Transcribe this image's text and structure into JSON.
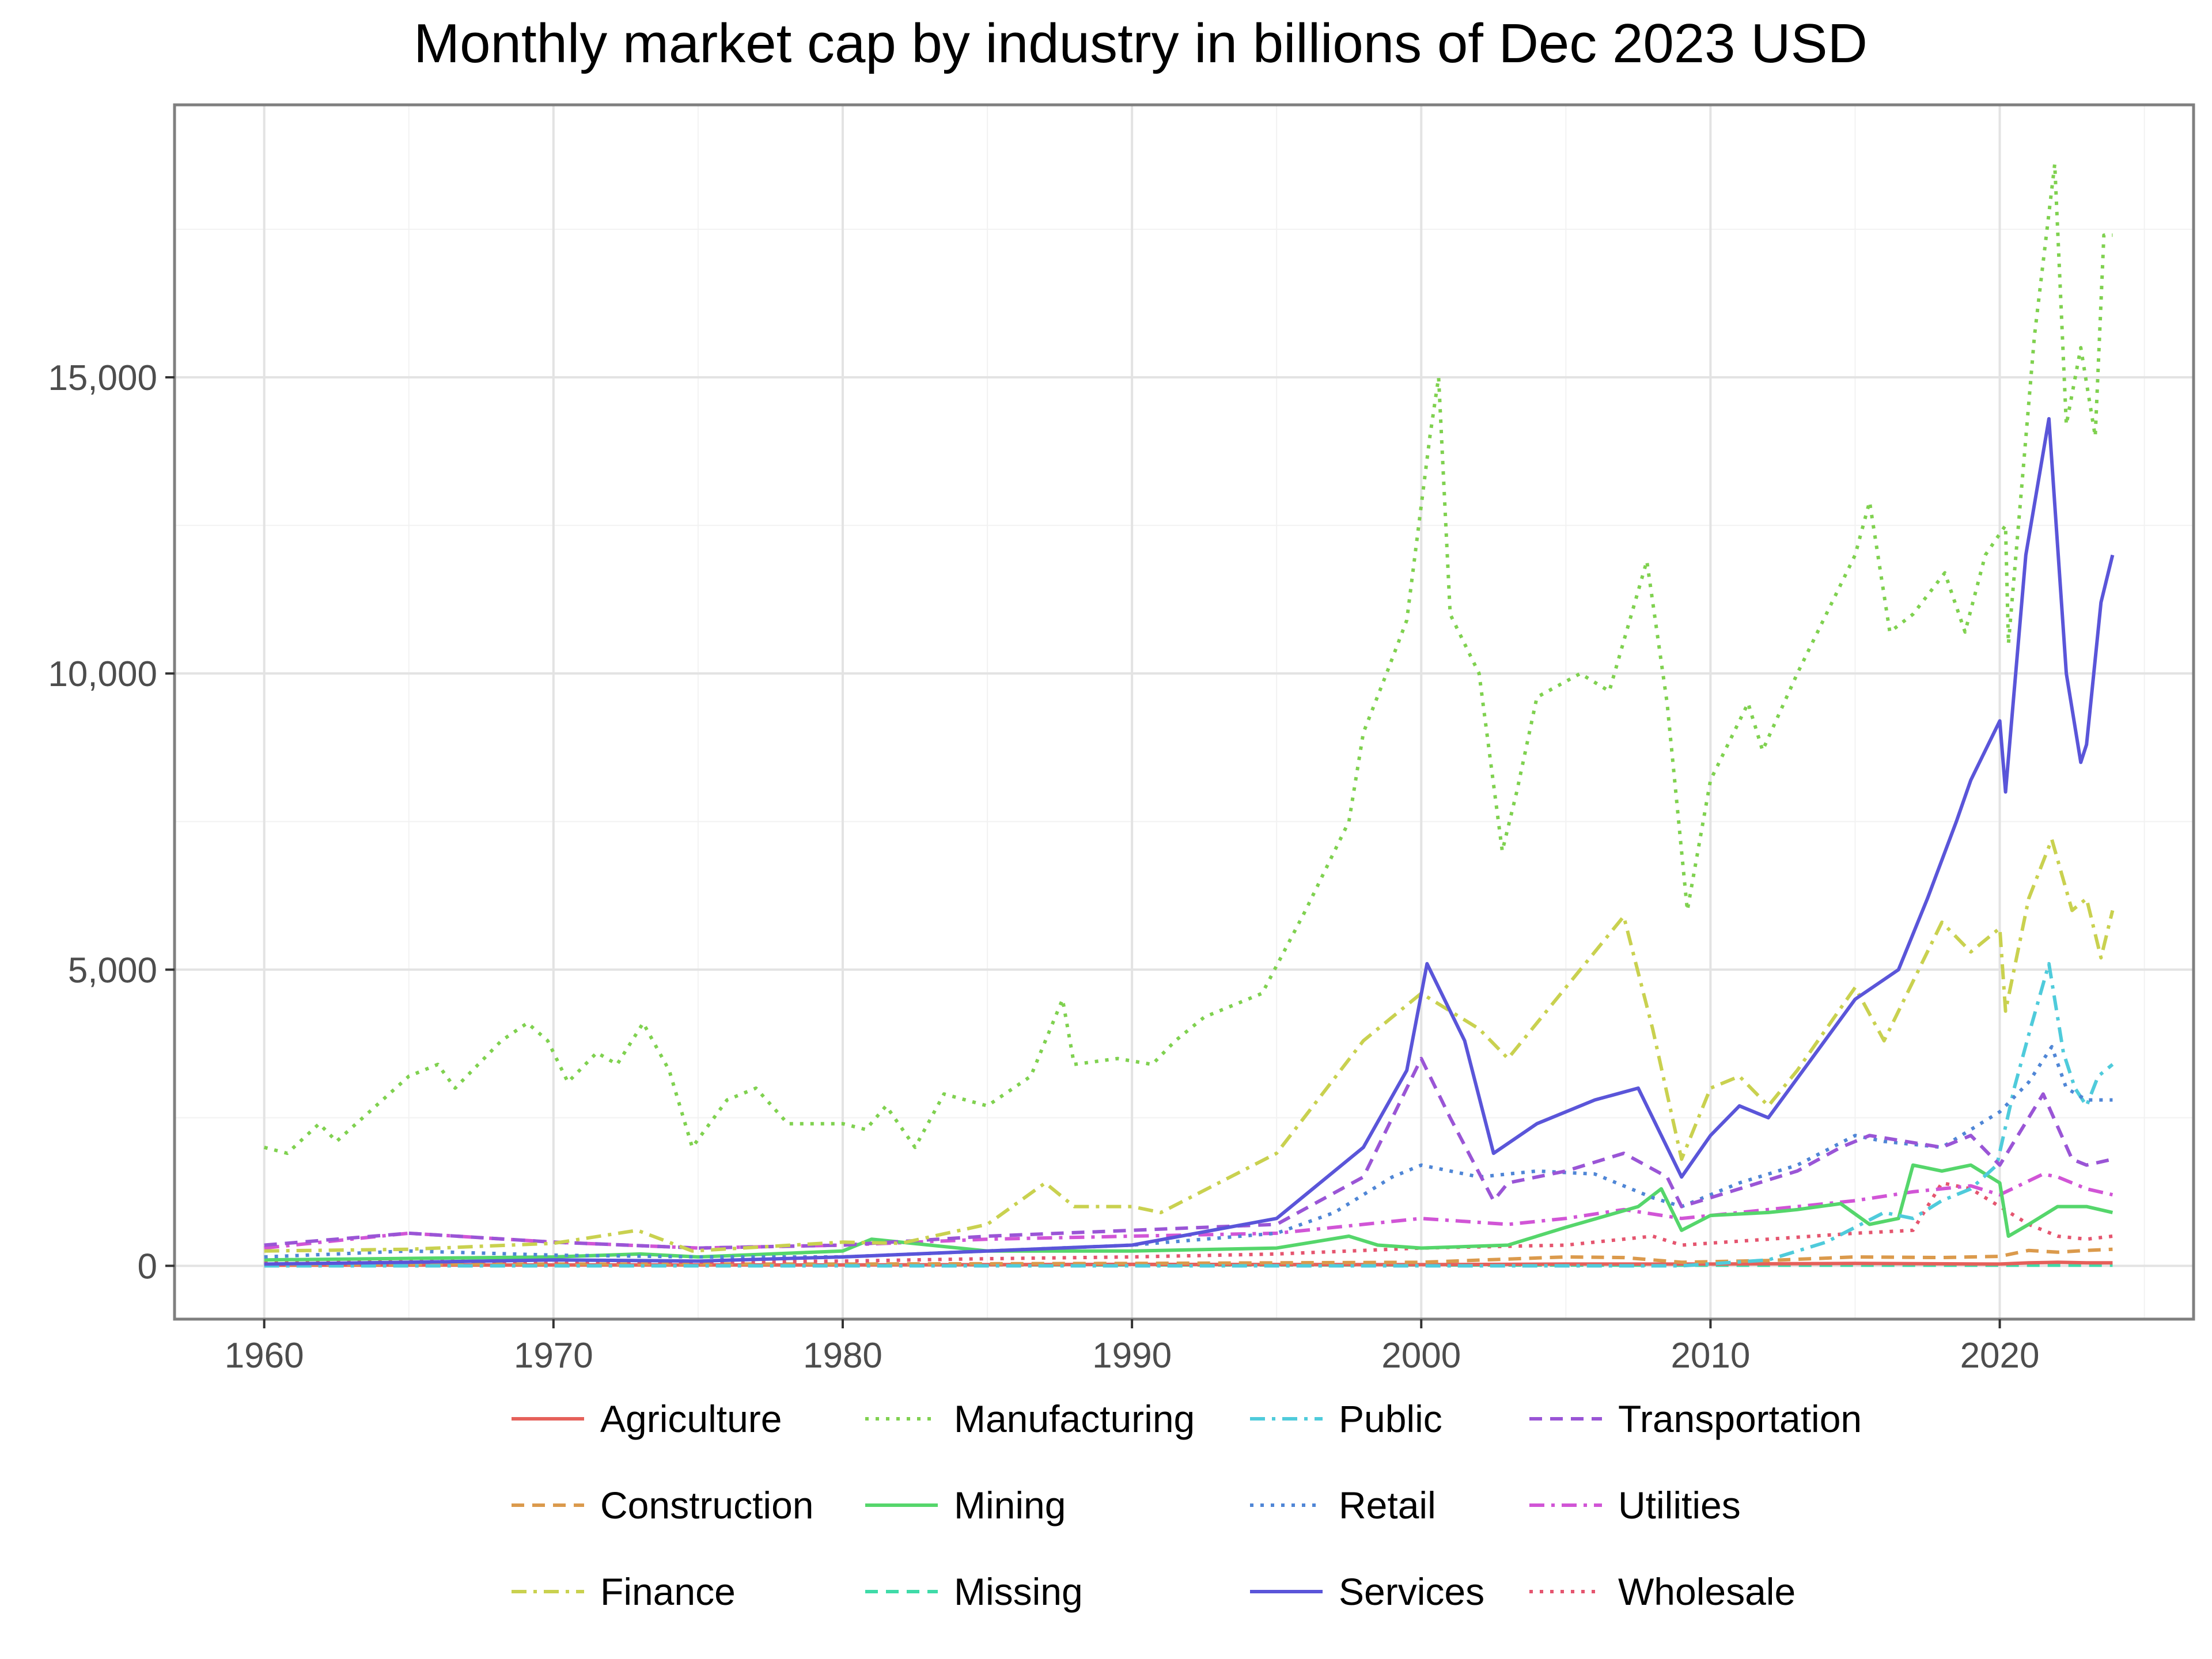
{
  "chart_data": {
    "type": "line",
    "title": "Monthly market cap by industry in billions of Dec 2023 USD",
    "xlabel": "",
    "ylabel": "",
    "xlim": [
      1956.9,
      2026.7
    ],
    "ylim": [
      -900,
      19600
    ],
    "x_ticks": [
      1960,
      1970,
      1980,
      1990,
      2000,
      2010,
      2020
    ],
    "x_tick_labels": [
      "1960",
      "1970",
      "1980",
      "1990",
      "2000",
      "2010",
      "2020"
    ],
    "y_ticks": [
      0,
      5000,
      10000,
      15000
    ],
    "y_tick_labels": [
      "0",
      "5,000",
      "10,000",
      "15,000"
    ],
    "grid": true,
    "legend_position": "bottom",
    "series": [
      {
        "name": "Agriculture",
        "color": "#E5605A",
        "dash": "solid",
        "x": [
          1960,
          1970,
          1980,
          1990,
          2000,
          2005,
          2010,
          2015,
          2020,
          2021,
          2022,
          2023,
          2023.9
        ],
        "y": [
          10,
          15,
          15,
          25,
          20,
          30,
          30,
          40,
          30,
          50,
          60,
          50,
          50
        ]
      },
      {
        "name": "Construction",
        "color": "#DB9A4C",
        "dash": "dash",
        "x": [
          1960,
          1970,
          1980,
          1990,
          2000,
          2005,
          2007,
          2009,
          2012,
          2015,
          2018,
          2020,
          2021,
          2022,
          2023,
          2023.9
        ],
        "y": [
          20,
          30,
          30,
          40,
          60,
          150,
          140,
          60,
          90,
          150,
          140,
          160,
          260,
          230,
          260,
          280
        ]
      },
      {
        "name": "Finance",
        "color": "#C9D14F",
        "dash": "dashdot",
        "x": [
          1960,
          1965,
          1970,
          1972.9,
          1974.8,
          1980,
          1982,
          1985,
          1987,
          1988,
          1990,
          1991,
          1995,
          1998,
          2000,
          2002,
          2003,
          2005,
          2007,
          2008,
          2009,
          2010,
          2011,
          2012,
          2013,
          2015,
          2016,
          2018,
          2019,
          2020,
          2020.2,
          2021,
          2021.8,
          2022.5,
          2023,
          2023.5,
          2023.9
        ],
        "y": [
          250,
          280,
          380,
          600,
          250,
          400,
          380,
          700,
          1400,
          1000,
          1000,
          900,
          1900,
          3800,
          4600,
          4000,
          3500,
          4700,
          5900,
          4000,
          1800,
          3000,
          3200,
          2700,
          3300,
          4700,
          3800,
          5800,
          5300,
          5700,
          4300,
          6200,
          7200,
          6000,
          6200,
          5200,
          6000
        ]
      },
      {
        "name": "Manufacturing",
        "color": "#7FD14F",
        "dash": "dot",
        "x": [
          1960,
          1960.8,
          1961.9,
          1962.5,
          1965,
          1966,
          1966.6,
          1968.2,
          1969.1,
          1969.8,
          1970.5,
          1971.5,
          1972.2,
          1973.1,
          1974,
          1974.8,
          1976,
          1977,
          1978.1,
          1980,
          1980.8,
          1981.5,
          1982.5,
          1983.5,
          1985,
          1986.5,
          1987.6,
          1988,
          1989.5,
          1990.7,
          1991.5,
          1992.5,
          1994.5,
          1996,
          1997.5,
          1998,
          1998.8,
          1999.5,
          2000.3,
          2000.6,
          2001,
          2002,
          2002.8,
          2003.3,
          2004,
          2005.5,
          2006.5,
          2007.8,
          2008.5,
          2009.2,
          2010,
          2011.3,
          2011.8,
          2013,
          2015,
          2015.5,
          2016.2,
          2017,
          2018.1,
          2018.8,
          2019.5,
          2020.2,
          2020.3,
          2021.2,
          2021.9,
          2022.3,
          2022.8,
          2023.3,
          2023.6,
          2023.9
        ],
        "y": [
          2000,
          1900,
          2400,
          2100,
          3200,
          3400,
          3000,
          3800,
          4100,
          3800,
          3100,
          3600,
          3400,
          4100,
          3300,
          2000,
          2800,
          3000,
          2400,
          2400,
          2300,
          2700,
          2000,
          2900,
          2700,
          3200,
          4500,
          3400,
          3500,
          3400,
          3800,
          4200,
          4600,
          6000,
          7500,
          9000,
          10000,
          10900,
          14000,
          15000,
          11000,
          10000,
          7000,
          8000,
          9600,
          10000,
          9700,
          11900,
          9500,
          6000,
          8200,
          9500,
          8700,
          10000,
          12000,
          12900,
          10700,
          11000,
          11700,
          10700,
          12000,
          12500,
          10500,
          15700,
          18600,
          14200,
          15500,
          14000,
          17400,
          17400
        ]
      },
      {
        "name": "Mining",
        "color": "#55D66B",
        "dash": "solid",
        "x": [
          1960,
          1970,
          1973,
          1975,
          1980,
          1981,
          1985,
          1990,
          1995,
          1997.5,
          1998.5,
          2000,
          2003,
          2005,
          2007.5,
          2008.3,
          2009,
          2010,
          2012,
          2013,
          2014.5,
          2015.5,
          2016.5,
          2017,
          2018,
          2019,
          2020,
          2020.3,
          2021,
          2022,
          2023,
          2023.9
        ],
        "y": [
          100,
          150,
          200,
          150,
          250,
          450,
          250,
          250,
          300,
          500,
          350,
          300,
          350,
          650,
          1000,
          1300,
          600,
          850,
          900,
          950,
          1050,
          700,
          800,
          1700,
          1600,
          1700,
          1400,
          500,
          700,
          1000,
          1000,
          900
        ]
      },
      {
        "name": "Missing",
        "color": "#3FDBA8",
        "dash": "dash",
        "x": [
          1960,
          1970,
          1980,
          1990,
          2000,
          2010,
          2020,
          2023.9
        ],
        "y": [
          15,
          20,
          20,
          15,
          15,
          10,
          10,
          10
        ]
      },
      {
        "name": "Public",
        "color": "#4FCBDB",
        "dash": "dashdot",
        "x": [
          1960,
          2000,
          2009,
          2012,
          2014,
          2015,
          2016,
          2017,
          2018,
          2019,
          2019.9,
          2020.5,
          2021,
          2021.7,
          2022.2,
          2022.6,
          2023,
          2023.4,
          2023.9
        ],
        "y": [
          0,
          0,
          0,
          100,
          400,
          650,
          900,
          800,
          1100,
          1300,
          1700,
          3000,
          3900,
          5100,
          3600,
          3000,
          2700,
          3200,
          3400
        ]
      },
      {
        "name": "Retail",
        "color": "#4F86D6",
        "dash": "dot",
        "x": [
          1960,
          1965,
          1970,
          1975,
          1980,
          1985,
          1990,
          1995,
          1997,
          1999,
          2000,
          2002,
          2004,
          2006,
          2008,
          2009,
          2011,
          2013,
          2015,
          2016,
          2018,
          2019,
          2020,
          2021,
          2021.8,
          2022.3,
          2023,
          2023.9
        ],
        "y": [
          150,
          250,
          180,
          150,
          150,
          250,
          350,
          550,
          900,
          1500,
          1700,
          1500,
          1600,
          1550,
          1150,
          1000,
          1400,
          1700,
          2200,
          2100,
          2000,
          2300,
          2600,
          3100,
          3700,
          3000,
          2800,
          2800
        ]
      },
      {
        "name": "Services",
        "color": "#5A55D9",
        "dash": "solid",
        "x": [
          1960,
          1965,
          1970,
          1975,
          1980,
          1985,
          1990,
          1995,
          1998,
          1999.5,
          2000.2,
          2001.5,
          2002.5,
          2004,
          2006,
          2007.5,
          2008.5,
          2009,
          2010,
          2011,
          2012,
          2013.5,
          2015,
          2016.5,
          2017.5,
          2018.5,
          2019,
          2020,
          2020.2,
          2020.9,
          2021.7,
          2022.3,
          2022.8,
          2023,
          2023.5,
          2023.9
        ],
        "y": [
          30,
          60,
          100,
          80,
          150,
          250,
          350,
          800,
          2000,
          3300,
          5100,
          3800,
          1900,
          2400,
          2800,
          3000,
          2000,
          1500,
          2200,
          2700,
          2500,
          3500,
          4500,
          5000,
          6200,
          7500,
          8200,
          9200,
          8000,
          12000,
          14300,
          10000,
          8500,
          8800,
          11200,
          12000
        ]
      },
      {
        "name": "Transportation",
        "color": "#9A55D6",
        "dash": "dash",
        "x": [
          1960,
          1965,
          1970,
          1975,
          1980,
          1985,
          1990,
          1995,
          1998,
          2000,
          2001,
          2002.5,
          2003,
          2005,
          2007,
          2008.5,
          2009,
          2011,
          2013,
          2014.5,
          2015.5,
          2018,
          2019,
          2020,
          2021.5,
          2022.5,
          2023,
          2023.9
        ],
        "y": [
          350,
          550,
          400,
          300,
          350,
          500,
          600,
          700,
          1500,
          3500,
          2500,
          1100,
          1400,
          1600,
          1900,
          1500,
          1000,
          1300,
          1600,
          2000,
          2200,
          2000,
          2200,
          1700,
          2900,
          1800,
          1700,
          1800
        ]
      },
      {
        "name": "Utilities",
        "color": "#D155D6",
        "dash": "dashdot",
        "x": [
          1960,
          1965,
          1970,
          1975,
          1980,
          1985,
          1990,
          1995,
          2000,
          2003,
          2005,
          2007,
          2009,
          2011,
          2013,
          2015,
          2017,
          2019,
          2020,
          2021.5,
          2022,
          2023,
          2023.9
        ],
        "y": [
          300,
          550,
          400,
          300,
          350,
          450,
          500,
          550,
          800,
          700,
          800,
          950,
          800,
          900,
          1000,
          1100,
          1250,
          1350,
          1200,
          1550,
          1500,
          1300,
          1200
        ]
      },
      {
        "name": "Wholesale",
        "color": "#E5556F",
        "dash": "dot",
        "x": [
          1960,
          1965,
          1970,
          1975,
          1980,
          1985,
          1990,
          1995,
          2000,
          2005,
          2008,
          2009,
          2012,
          2015,
          2017,
          2018,
          2019,
          2020,
          2021,
          2022,
          2023,
          2023.9
        ],
        "y": [
          50,
          80,
          70,
          60,
          80,
          120,
          150,
          200,
          300,
          350,
          500,
          350,
          450,
          550,
          600,
          1400,
          1300,
          1000,
          700,
          500,
          450,
          500
        ]
      }
    ]
  }
}
